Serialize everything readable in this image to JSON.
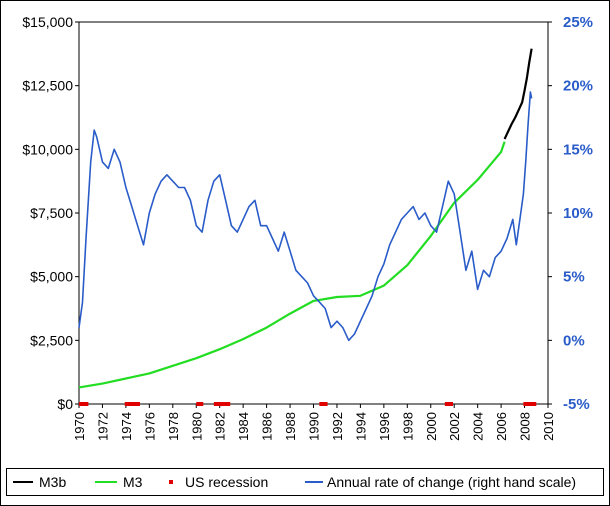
{
  "chart_data": {
    "type": "line",
    "title": "",
    "xlabel": "",
    "ylabel_left": "",
    "ylabel_right": "",
    "x_range": [
      1970,
      2010
    ],
    "x_ticks": [
      "1970",
      "1972",
      "1974",
      "1976",
      "1978",
      "1980",
      "1982",
      "1984",
      "1986",
      "1988",
      "1990",
      "1992",
      "1994",
      "1996",
      "1998",
      "2000",
      "2002",
      "2004",
      "2006",
      "2008",
      "2010"
    ],
    "ylim_left": [
      0,
      15000
    ],
    "ylim_right": [
      -5,
      25
    ],
    "left_ticks": [
      "$0",
      "$2,500",
      "$5,000",
      "$7,500",
      "$10,000",
      "$12,500",
      "$15,000"
    ],
    "right_ticks": [
      "-5%",
      "0%",
      "5%",
      "10%",
      "15%",
      "20%",
      "25%"
    ],
    "grid": false,
    "legend_position": "bottom",
    "series": [
      {
        "name": "M3b",
        "axis": "left",
        "color": "#000000",
        "x": [
          2006.3,
          2006.6,
          2006.9,
          2007.2,
          2007.5,
          2007.8,
          2008.0,
          2008.2,
          2008.4,
          2008.6
        ],
        "y": [
          10400,
          10700,
          11000,
          11250,
          11550,
          11850,
          12300,
          12800,
          13400,
          13950
        ]
      },
      {
        "name": "M3",
        "axis": "left",
        "color": "#22dd22",
        "x": [
          1970,
          1972,
          1974,
          1976,
          1978,
          1980,
          1982,
          1984,
          1986,
          1988,
          1990,
          1992,
          1994,
          1996,
          1998,
          2000,
          2002,
          2004,
          2006,
          2006.3
        ],
        "y": [
          650,
          800,
          1000,
          1200,
          1500,
          1800,
          2150,
          2550,
          3000,
          3550,
          4050,
          4200,
          4250,
          4650,
          5450,
          6600,
          7900,
          8800,
          9900,
          10300
        ]
      },
      {
        "name": "US recession",
        "axis": "marker",
        "color": "#e00000",
        "periods": [
          [
            1970.0,
            1970.8
          ],
          [
            1973.9,
            1975.2
          ],
          [
            1980.0,
            1980.6
          ],
          [
            1981.5,
            1982.9
          ],
          [
            1990.5,
            1991.2
          ],
          [
            2001.2,
            2001.9
          ],
          [
            2007.9,
            2009.0
          ]
        ]
      },
      {
        "name": "Annual rate of change (right hand scale)",
        "axis": "right",
        "color": "#2a5cc9",
        "x": [
          1970,
          1970.3,
          1970.6,
          1971,
          1971.3,
          1971.5,
          1972,
          1972.5,
          1973,
          1973.5,
          1974,
          1974.5,
          1975,
          1975.5,
          1976,
          1976.5,
          1977,
          1977.5,
          1978,
          1978.5,
          1979,
          1979.5,
          1980,
          1980.5,
          1981,
          1981.5,
          1982,
          1982.5,
          1983,
          1983.5,
          1984,
          1984.5,
          1985,
          1985.5,
          1986,
          1986.5,
          1987,
          1987.5,
          1988,
          1988.5,
          1989,
          1989.5,
          1990,
          1990.5,
          1991,
          1991.5,
          1992,
          1992.5,
          1993,
          1993.5,
          1994,
          1994.5,
          1995,
          1995.5,
          1996,
          1996.5,
          1997,
          1997.5,
          1998,
          1998.5,
          1999,
          1999.5,
          2000,
          2000.5,
          2001,
          2001.5,
          2002,
          2002.5,
          2003,
          2003.5,
          2004,
          2004.5,
          2005,
          2005.5,
          2006,
          2006.5,
          2007,
          2007.3,
          2007.6,
          2007.9,
          2008.1,
          2008.3,
          2008.5,
          2008.6
        ],
        "y": [
          1,
          3,
          8,
          14,
          16.5,
          16,
          14,
          13.5,
          15,
          14,
          12,
          10.5,
          9,
          7.5,
          10,
          11.5,
          12.5,
          13,
          12.5,
          12,
          12,
          11,
          9,
          8.5,
          11,
          12.5,
          13,
          11,
          9,
          8.5,
          9.5,
          10.5,
          11,
          9,
          9,
          8,
          7,
          8.5,
          7,
          5.5,
          5,
          4.5,
          3.5,
          3,
          2.5,
          1,
          1.5,
          1,
          0,
          0.5,
          1.5,
          2.5,
          3.5,
          5,
          6,
          7.5,
          8.5,
          9.5,
          10,
          10.5,
          9.5,
          10,
          9,
          8.5,
          10.5,
          12.5,
          11.5,
          8.5,
          5.5,
          7,
          4,
          5.5,
          5,
          6.5,
          7,
          8,
          9.5,
          7.5,
          9.5,
          11.5,
          14,
          17,
          19.5,
          19
        ]
      }
    ]
  }
}
